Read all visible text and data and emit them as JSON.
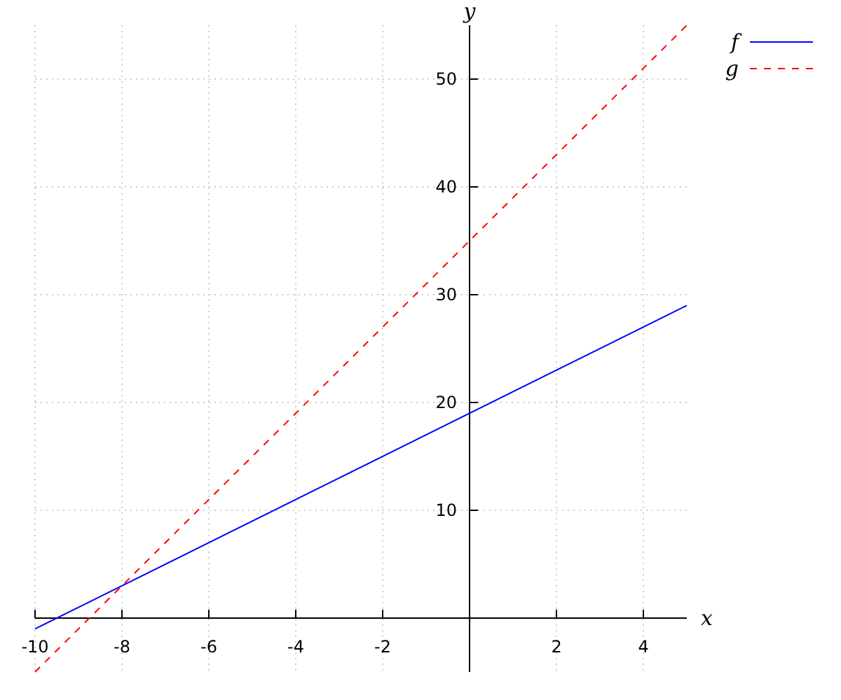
{
  "chart_data": {
    "type": "line",
    "xlabel": "x",
    "ylabel": "y",
    "x": [
      -10,
      5
    ],
    "series": [
      {
        "name": "f",
        "color": "#0000ff",
        "values": [
          -1,
          29
        ],
        "line_style": "solid"
      },
      {
        "name": "g",
        "color": "#ff0000",
        "values": [
          -5,
          55
        ],
        "line_style": "dashed"
      }
    ],
    "xlim": [
      -10,
      5
    ],
    "ylim": [
      -5,
      55
    ],
    "xticks": [
      -10,
      -8,
      -6,
      -4,
      -2,
      2,
      4
    ],
    "yticks": [
      10,
      20,
      30,
      40,
      50
    ],
    "grid": true,
    "legend": "top right"
  }
}
